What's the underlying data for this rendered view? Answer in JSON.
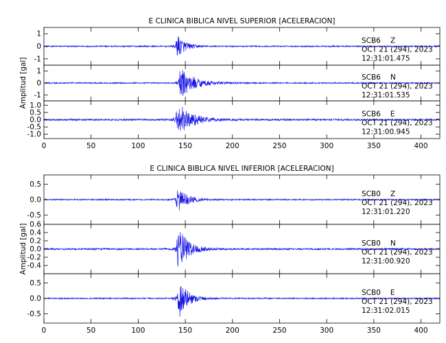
{
  "chart_data": [
    {
      "type": "line",
      "title": "E CLINICA BIBLICA NIVEL SUPERIOR [ACELERACION]",
      "ylabel": "Amplitud [gal]",
      "xlim": [
        0,
        420
      ],
      "x_ticks": [
        0,
        50,
        100,
        150,
        200,
        250,
        300,
        350,
        400
      ],
      "traces": [
        {
          "station": "SCB6",
          "component": "Z",
          "date": "OCT 21 (294), 2023",
          "time": "12:31:01.475",
          "ylim": [
            -1.5,
            1.5
          ],
          "y_ticks": [
            "1",
            "0",
            "-1"
          ],
          "y_tick_values": [
            1,
            0,
            -1
          ],
          "onset": 140,
          "peak": 0.9,
          "decay": 8,
          "noise": 0.05
        },
        {
          "station": "SCB6",
          "component": "N",
          "date": "OCT 21 (294), 2023",
          "time": "12:31:01.535",
          "ylim": [
            -1.5,
            1.5
          ],
          "y_ticks": [
            "1",
            "0",
            "-1"
          ],
          "y_tick_values": [
            1,
            0,
            -1
          ],
          "onset": 143,
          "peak": 1.3,
          "decay": 14,
          "noise": 0.05
        },
        {
          "station": "SCB6",
          "component": "E",
          "date": "OCT 21 (294), 2023",
          "time": "12:31:00.945",
          "ylim": [
            -1.3,
            1.3
          ],
          "y_ticks": [
            "1.0",
            "0.5",
            "0.0",
            "-0.5",
            "-1.0"
          ],
          "y_tick_values": [
            1.0,
            0.5,
            0.0,
            -0.5,
            -1.0
          ],
          "onset": 140,
          "peak": 1.2,
          "decay": 14,
          "noise": 0.06
        }
      ]
    },
    {
      "type": "line",
      "title": "E CLINICA BIBLICA NIVEL INFERIOR [ACELERACION]",
      "ylabel": "Amplitud [gal]",
      "xlim": [
        0,
        420
      ],
      "x_ticks": [
        0,
        50,
        100,
        150,
        200,
        250,
        300,
        350,
        400
      ],
      "traces": [
        {
          "station": "SCB0",
          "component": "Z",
          "date": "OCT 21 (294), 2023",
          "time": "12:31:01.220",
          "ylim": [
            -0.8,
            0.8
          ],
          "y_ticks": [
            "0.5",
            "0.0",
            "-0.5"
          ],
          "y_tick_values": [
            0.5,
            0.0,
            -0.5
          ],
          "onset": 140,
          "peak": 0.4,
          "decay": 10,
          "noise": 0.02
        },
        {
          "station": "SCB0",
          "component": "N",
          "date": "OCT 21 (294), 2023",
          "time": "12:31:00.920",
          "ylim": [
            -0.6,
            0.6
          ],
          "y_ticks": [
            "0.6",
            "0.4",
            "0.2",
            "0.0",
            "-0.2",
            "-0.4"
          ],
          "y_tick_values": [
            0.6,
            0.4,
            0.2,
            0.0,
            -0.2,
            -0.4
          ],
          "onset": 141,
          "peak": 0.55,
          "decay": 10,
          "noise": 0.02
        },
        {
          "station": "SCB0",
          "component": "E",
          "date": "OCT 21 (294), 2023",
          "time": "12:31:02.015",
          "ylim": [
            -0.8,
            0.8
          ],
          "y_ticks": [
            "0.5",
            "0.0",
            "-0.5"
          ],
          "y_tick_values": [
            0.5,
            0.0,
            -0.5
          ],
          "onset": 141,
          "peak": 0.7,
          "decay": 9,
          "noise": 0.02
        }
      ]
    }
  ],
  "colors": {
    "trace": "#1414e6",
    "axes": "#000000"
  }
}
